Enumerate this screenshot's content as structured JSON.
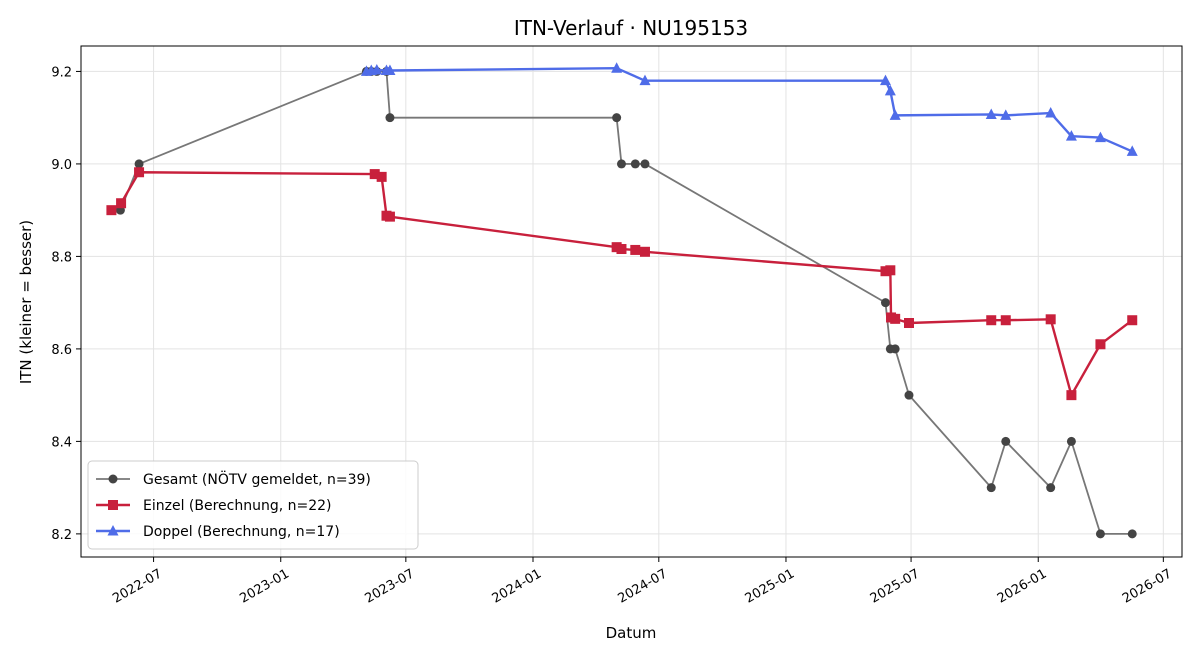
{
  "chart_data": {
    "type": "line",
    "title": "ITN-Verlauf · NU195153",
    "xlabel": "Datum",
    "ylabel": "ITN  (kleiner = besser)",
    "xlim": [
      "2022-03-18",
      "2026-07-28"
    ],
    "ylim": [
      8.15,
      9.255
    ],
    "x_ticks": [
      "2022-07",
      "2023-01",
      "2023-07",
      "2024-01",
      "2024-07",
      "2025-01",
      "2025-07",
      "2026-01",
      "2026-07"
    ],
    "y_ticks": [
      8.2,
      8.4,
      8.6,
      8.8,
      9.0,
      9.2
    ],
    "grid": true,
    "legend_position": "lower-left",
    "series": [
      {
        "name": "Gesamt (NÖTV gemeldet, n=39)",
        "color": "#777777",
        "marker_color": "#444444",
        "marker": "circle",
        "points": [
          [
            "2022-05-01",
            8.9
          ],
          [
            "2022-05-14",
            8.9
          ],
          [
            "2022-06-10",
            9.0
          ],
          [
            "2023-05-05",
            9.2
          ],
          [
            "2023-05-12",
            9.2
          ],
          [
            "2023-05-20",
            9.2
          ],
          [
            "2023-06-03",
            9.2
          ],
          [
            "2023-06-08",
            9.1
          ],
          [
            "2024-05-01",
            9.1
          ],
          [
            "2024-05-08",
            9.0
          ],
          [
            "2024-05-28",
            9.0
          ],
          [
            "2024-06-11",
            9.0
          ],
          [
            "2025-05-25",
            8.7
          ],
          [
            "2025-06-01",
            8.6
          ],
          [
            "2025-06-08",
            8.6
          ],
          [
            "2025-06-28",
            8.5
          ],
          [
            "2025-10-25",
            8.3
          ],
          [
            "2025-11-15",
            8.4
          ],
          [
            "2026-01-19",
            8.3
          ],
          [
            "2026-02-18",
            8.4
          ],
          [
            "2026-04-01",
            8.2
          ],
          [
            "2026-05-17",
            8.2
          ]
        ]
      },
      {
        "name": "Einzel (Berechnung, n=22)",
        "color": "#c8203c",
        "marker": "square",
        "points": [
          [
            "2022-05-01",
            8.9
          ],
          [
            "2022-05-15",
            8.915
          ],
          [
            "2022-06-10",
            8.982
          ],
          [
            "2023-05-17",
            8.978
          ],
          [
            "2023-05-27",
            8.972
          ],
          [
            "2023-06-03",
            8.888
          ],
          [
            "2023-06-08",
            8.886
          ],
          [
            "2024-05-01",
            8.82
          ],
          [
            "2024-05-08",
            8.816
          ],
          [
            "2024-05-28",
            8.814
          ],
          [
            "2024-06-11",
            8.81
          ],
          [
            "2025-05-25",
            8.768
          ],
          [
            "2025-06-01",
            8.77
          ],
          [
            "2025-06-02",
            8.668
          ],
          [
            "2025-06-08",
            8.665
          ],
          [
            "2025-06-28",
            8.656
          ],
          [
            "2025-10-25",
            8.662
          ],
          [
            "2025-11-15",
            8.662
          ],
          [
            "2026-01-19",
            8.664
          ],
          [
            "2026-02-18",
            8.5
          ],
          [
            "2026-04-01",
            8.61
          ],
          [
            "2026-05-17",
            8.662
          ]
        ]
      },
      {
        "name": "Doppel (Berechnung, n=17)",
        "color": "#4f6ce8",
        "marker": "triangle",
        "points": [
          [
            "2023-05-05",
            9.2
          ],
          [
            "2023-05-12",
            9.202
          ],
          [
            "2023-05-20",
            9.203
          ],
          [
            "2023-06-03",
            9.202
          ],
          [
            "2023-06-08",
            9.202
          ],
          [
            "2024-05-01",
            9.207
          ],
          [
            "2024-06-11",
            9.18
          ],
          [
            "2025-05-25",
            9.18
          ],
          [
            "2025-06-01",
            9.158
          ],
          [
            "2025-06-08",
            9.105
          ],
          [
            "2025-10-25",
            9.107
          ],
          [
            "2025-11-15",
            9.105
          ],
          [
            "2026-01-19",
            9.11
          ],
          [
            "2026-02-18",
            9.06
          ],
          [
            "2026-04-01",
            9.057
          ],
          [
            "2026-05-17",
            9.027
          ]
        ]
      }
    ]
  }
}
